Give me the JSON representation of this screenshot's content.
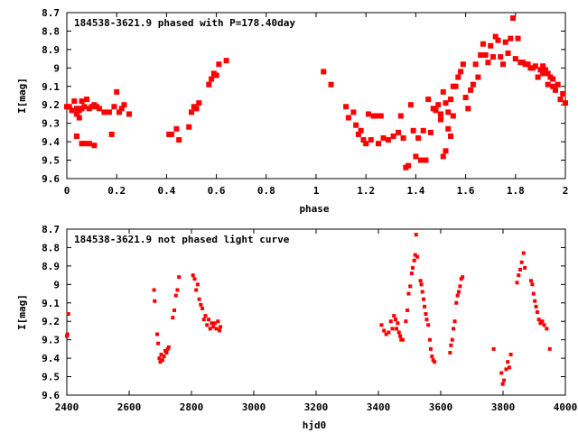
{
  "chart_data": [
    {
      "type": "scatter",
      "title": "184538-3621.9 phased with P=178.40day",
      "xlabel": "phase",
      "ylabel": "I[mag]",
      "xlim": [
        0,
        2
      ],
      "ylim": [
        8.7,
        9.6
      ],
      "y_inverted": true,
      "xticks": [
        0,
        0.2,
        0.4,
        0.6,
        0.8,
        1,
        1.2,
        1.4,
        1.6,
        1.8,
        2
      ],
      "xtick_labels": [
        "0",
        "0.2",
        "0.4",
        "0.6",
        "0.8",
        "1",
        "1.2",
        "1.4",
        "1.6",
        "1.8",
        "2"
      ],
      "yticks": [
        8.7,
        8.8,
        8.9,
        9.0,
        9.1,
        9.2,
        9.3,
        9.4,
        9.5,
        9.6
      ],
      "ytick_labels": [
        "8.7",
        "8.8",
        "8.9",
        "9",
        "9.1",
        "9.2",
        "9.3",
        "9.4",
        "9.5",
        "9.6"
      ],
      "color": "#ff0000",
      "points": [
        [
          0.0,
          9.21
        ],
        [
          0.01,
          9.21
        ],
        [
          0.02,
          9.23
        ],
        [
          0.03,
          9.18
        ],
        [
          0.04,
          9.22
        ],
        [
          0.04,
          9.25
        ],
        [
          0.05,
          9.27
        ],
        [
          0.05,
          9.23
        ],
        [
          0.06,
          9.18
        ],
        [
          0.06,
          9.22
        ],
        [
          0.07,
          9.21
        ],
        [
          0.08,
          9.17
        ],
        [
          0.09,
          9.22
        ],
        [
          0.1,
          9.21
        ],
        [
          0.11,
          9.2
        ],
        [
          0.12,
          9.21
        ],
        [
          0.13,
          9.22
        ],
        [
          0.15,
          9.24
        ],
        [
          0.17,
          9.24
        ],
        [
          0.19,
          9.21
        ],
        [
          0.2,
          9.13
        ],
        [
          0.21,
          9.24
        ],
        [
          0.22,
          9.22
        ],
        [
          0.23,
          9.2
        ],
        [
          0.25,
          9.25
        ],
        [
          0.04,
          9.37
        ],
        [
          0.06,
          9.41
        ],
        [
          0.07,
          9.41
        ],
        [
          0.09,
          9.41
        ],
        [
          0.11,
          9.42
        ],
        [
          0.18,
          9.36
        ],
        [
          0.41,
          9.36
        ],
        [
          0.42,
          9.36
        ],
        [
          0.44,
          9.33
        ],
        [
          0.45,
          9.39
        ],
        [
          0.49,
          9.32
        ],
        [
          0.5,
          9.24
        ],
        [
          0.51,
          9.21
        ],
        [
          0.52,
          9.22
        ],
        [
          0.53,
          9.19
        ],
        [
          0.57,
          9.09
        ],
        [
          0.58,
          9.06
        ],
        [
          0.59,
          9.03
        ],
        [
          0.6,
          9.04
        ],
        [
          0.61,
          8.98
        ],
        [
          0.64,
          8.96
        ],
        [
          1.03,
          9.02
        ],
        [
          1.06,
          9.09
        ],
        [
          1.12,
          9.21
        ],
        [
          1.13,
          9.27
        ],
        [
          1.15,
          9.24
        ],
        [
          1.16,
          9.31
        ],
        [
          1.17,
          9.36
        ],
        [
          1.18,
          9.34
        ],
        [
          1.19,
          9.39
        ],
        [
          1.2,
          9.41
        ],
        [
          1.21,
          9.25
        ],
        [
          1.22,
          9.39
        ],
        [
          1.23,
          9.26
        ],
        [
          1.24,
          9.26
        ],
        [
          1.25,
          9.41
        ],
        [
          1.26,
          9.26
        ],
        [
          1.27,
          9.38
        ],
        [
          1.29,
          9.39
        ],
        [
          1.31,
          9.37
        ],
        [
          1.33,
          9.35
        ],
        [
          1.34,
          9.26
        ],
        [
          1.35,
          9.38
        ],
        [
          1.36,
          9.54
        ],
        [
          1.37,
          9.53
        ],
        [
          1.38,
          9.2
        ],
        [
          1.39,
          9.34
        ],
        [
          1.4,
          9.48
        ],
        [
          1.41,
          9.38
        ],
        [
          1.42,
          9.5
        ],
        [
          1.43,
          9.34
        ],
        [
          1.44,
          9.5
        ],
        [
          1.45,
          9.17
        ],
        [
          1.46,
          9.35
        ],
        [
          1.47,
          9.22
        ],
        [
          1.48,
          9.23
        ],
        [
          1.49,
          9.2
        ],
        [
          1.5,
          9.25
        ],
        [
          1.51,
          9.13
        ],
        [
          1.52,
          9.19
        ],
        [
          1.53,
          9.33
        ],
        [
          1.54,
          9.17
        ],
        [
          1.55,
          9.1
        ],
        [
          1.5,
          9.28
        ],
        [
          1.51,
          9.48
        ],
        [
          1.52,
          9.45
        ],
        [
          1.53,
          9.24
        ],
        [
          1.54,
          9.37
        ],
        [
          1.55,
          9.26
        ],
        [
          1.56,
          9.1
        ],
        [
          1.57,
          9.05
        ],
        [
          1.58,
          9.02
        ],
        [
          1.59,
          8.98
        ],
        [
          1.6,
          9.16
        ],
        [
          1.61,
          9.22
        ],
        [
          1.62,
          9.12
        ],
        [
          1.63,
          9.09
        ],
        [
          1.64,
          8.98
        ],
        [
          1.65,
          9.05
        ],
        [
          1.66,
          8.93
        ],
        [
          1.67,
          8.87
        ],
        [
          1.68,
          8.93
        ],
        [
          1.69,
          8.97
        ],
        [
          1.7,
          8.88
        ],
        [
          1.71,
          8.94
        ],
        [
          1.72,
          8.83
        ],
        [
          1.73,
          8.85
        ],
        [
          1.74,
          8.94
        ],
        [
          1.75,
          8.98
        ],
        [
          1.76,
          8.86
        ],
        [
          1.77,
          8.92
        ],
        [
          1.78,
          8.84
        ],
        [
          1.79,
          8.73
        ],
        [
          1.8,
          8.95
        ],
        [
          1.81,
          8.84
        ],
        [
          1.82,
          8.97
        ],
        [
          1.83,
          8.97
        ],
        [
          1.84,
          8.98
        ],
        [
          1.85,
          8.98
        ],
        [
          1.86,
          9.0
        ],
        [
          1.87,
          9.0
        ],
        [
          1.88,
          8.99
        ],
        [
          1.89,
          9.05
        ],
        [
          1.9,
          9.01
        ],
        [
          1.91,
          9.03
        ],
        [
          1.92,
          9.01
        ],
        [
          1.93,
          9.09
        ],
        [
          1.94,
          9.05
        ],
        [
          1.95,
          9.06
        ],
        [
          1.96,
          9.12
        ],
        [
          1.97,
          9.09
        ],
        [
          1.98,
          9.17
        ],
        [
          1.99,
          9.14
        ],
        [
          2.0,
          9.19
        ],
        [
          1.91,
          8.99
        ],
        [
          1.93,
          9.03
        ],
        [
          1.95,
          9.1
        ]
      ]
    },
    {
      "type": "scatter",
      "title": "184538-3621.9 not phased light curve",
      "xlabel": "hjd0",
      "ylabel": "I[mag]",
      "xlim": [
        2400,
        4000
      ],
      "ylim": [
        8.7,
        9.6
      ],
      "y_inverted": true,
      "xticks": [
        2400,
        2600,
        2800,
        3000,
        3200,
        3400,
        3600,
        3800,
        4000
      ],
      "xtick_labels": [
        "2400",
        "2600",
        "2800",
        "3000",
        "3200",
        "3400",
        "3600",
        "3800",
        "4000"
      ],
      "yticks": [
        8.7,
        8.8,
        8.9,
        9.0,
        9.1,
        9.2,
        9.3,
        9.4,
        9.5,
        9.6
      ],
      "ytick_labels": [
        "8.7",
        "8.8",
        "8.9",
        "9",
        "9.1",
        "9.2",
        "9.3",
        "9.4",
        "9.5",
        "9.6"
      ],
      "color": "#ff0000",
      "points": [
        [
          2400,
          9.28
        ],
        [
          2402,
          9.27
        ],
        [
          2405,
          9.16
        ],
        [
          2680,
          9.03
        ],
        [
          2682,
          9.09
        ],
        [
          2690,
          9.27
        ],
        [
          2693,
          9.32
        ],
        [
          2697,
          9.4
        ],
        [
          2700,
          9.42
        ],
        [
          2703,
          9.38
        ],
        [
          2707,
          9.41
        ],
        [
          2712,
          9.39
        ],
        [
          2716,
          9.36
        ],
        [
          2720,
          9.37
        ],
        [
          2724,
          9.35
        ],
        [
          2727,
          9.34
        ],
        [
          2740,
          9.18
        ],
        [
          2745,
          9.14
        ],
        [
          2750,
          9.06
        ],
        [
          2755,
          9.03
        ],
        [
          2760,
          8.96
        ],
        [
          2805,
          8.95
        ],
        [
          2810,
          8.97
        ],
        [
          2815,
          9.03
        ],
        [
          2820,
          9.0
        ],
        [
          2825,
          9.08
        ],
        [
          2830,
          9.11
        ],
        [
          2835,
          9.13
        ],
        [
          2840,
          9.19
        ],
        [
          2845,
          9.17
        ],
        [
          2850,
          9.22
        ],
        [
          2855,
          9.19
        ],
        [
          2860,
          9.24
        ],
        [
          2865,
          9.21
        ],
        [
          2870,
          9.23
        ],
        [
          2875,
          9.21
        ],
        [
          2880,
          9.24
        ],
        [
          2885,
          9.2
        ],
        [
          2890,
          9.25
        ],
        [
          2893,
          9.23
        ],
        [
          3410,
          9.22
        ],
        [
          3418,
          9.25
        ],
        [
          3425,
          9.27
        ],
        [
          3433,
          9.26
        ],
        [
          3440,
          9.2
        ],
        [
          3445,
          9.24
        ],
        [
          3450,
          9.17
        ],
        [
          3455,
          9.19
        ],
        [
          3458,
          9.24
        ],
        [
          3462,
          9.21
        ],
        [
          3466,
          9.26
        ],
        [
          3470,
          9.28
        ],
        [
          3473,
          9.3
        ],
        [
          3478,
          9.3
        ],
        [
          3488,
          9.2
        ],
        [
          3493,
          9.14
        ],
        [
          3497,
          9.05
        ],
        [
          3502,
          9.01
        ],
        [
          3507,
          8.94
        ],
        [
          3510,
          8.91
        ],
        [
          3515,
          8.87
        ],
        [
          3518,
          8.84
        ],
        [
          3521,
          8.73
        ],
        [
          3525,
          8.85
        ],
        [
          3535,
          8.98
        ],
        [
          3538,
          9.0
        ],
        [
          3541,
          9.04
        ],
        [
          3545,
          9.08
        ],
        [
          3548,
          9.12
        ],
        [
          3552,
          9.16
        ],
        [
          3555,
          9.19
        ],
        [
          3560,
          9.22
        ],
        [
          3565,
          9.3
        ],
        [
          3568,
          9.35
        ],
        [
          3572,
          9.39
        ],
        [
          3576,
          9.41
        ],
        [
          3580,
          9.42
        ],
        [
          3630,
          9.37
        ],
        [
          3633,
          9.33
        ],
        [
          3637,
          9.3
        ],
        [
          3641,
          9.24
        ],
        [
          3645,
          9.2
        ],
        [
          3650,
          9.1
        ],
        [
          3654,
          9.06
        ],
        [
          3658,
          9.04
        ],
        [
          3662,
          9.01
        ],
        [
          3666,
          8.97
        ],
        [
          3670,
          8.96
        ],
        [
          3770,
          9.35
        ],
        [
          3795,
          9.48
        ],
        [
          3799,
          9.54
        ],
        [
          3803,
          9.52
        ],
        [
          3810,
          9.46
        ],
        [
          3815,
          9.42
        ],
        [
          3820,
          9.45
        ],
        [
          3825,
          9.38
        ],
        [
          3845,
          8.99
        ],
        [
          3850,
          8.95
        ],
        [
          3855,
          8.92
        ],
        [
          3860,
          8.88
        ],
        [
          3866,
          8.83
        ],
        [
          3870,
          8.91
        ],
        [
          3890,
          8.98
        ],
        [
          3894,
          9.0
        ],
        [
          3898,
          9.05
        ],
        [
          3902,
          9.09
        ],
        [
          3906,
          9.12
        ],
        [
          3910,
          9.15
        ],
        [
          3915,
          9.19
        ],
        [
          3920,
          9.21
        ],
        [
          3926,
          9.2
        ],
        [
          3932,
          9.22
        ],
        [
          3940,
          9.24
        ],
        [
          3950,
          9.35
        ]
      ]
    }
  ]
}
